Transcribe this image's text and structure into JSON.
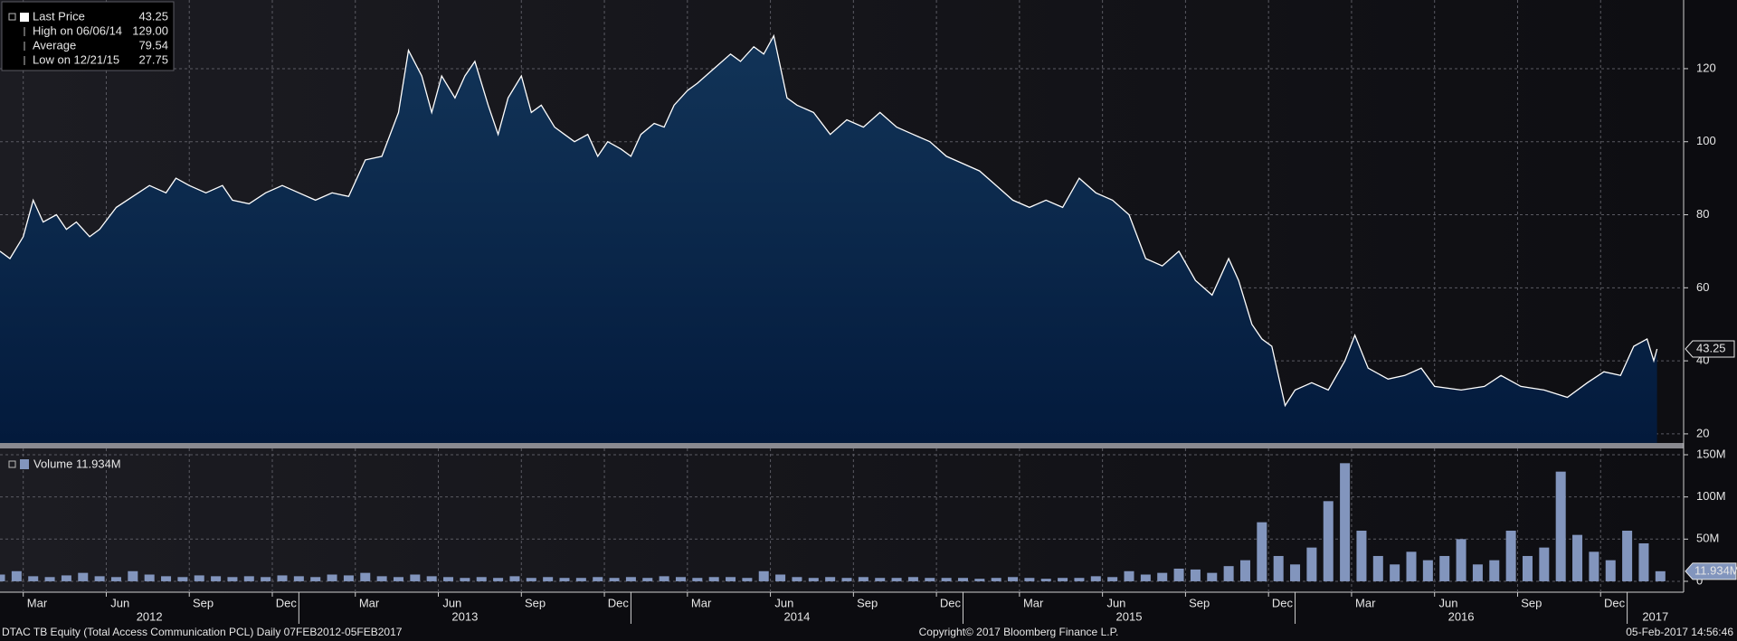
{
  "chart_data": [
    {
      "type": "area",
      "x": [
        2012.1,
        2012.13,
        2012.17,
        2012.2,
        2012.23,
        2012.27,
        2012.3,
        2012.33,
        2012.37,
        2012.4,
        2012.45,
        2012.5,
        2012.55,
        2012.6,
        2012.63,
        2012.67,
        2012.72,
        2012.77,
        2012.8,
        2012.85,
        2012.9,
        2012.95,
        2013.0,
        2013.05,
        2013.1,
        2013.15,
        2013.2,
        2013.25,
        2013.3,
        2013.33,
        2013.37,
        2013.4,
        2013.43,
        2013.47,
        2013.5,
        2013.53,
        2013.57,
        2013.6,
        2013.63,
        2013.67,
        2013.7,
        2013.73,
        2013.77,
        2013.8,
        2013.83,
        2013.87,
        2013.9,
        2013.93,
        2013.97,
        2014.0,
        2014.03,
        2014.07,
        2014.1,
        2014.13,
        2014.17,
        2014.2,
        2014.25,
        2014.3,
        2014.33,
        2014.37,
        2014.4,
        2014.43,
        2014.47,
        2014.5,
        2014.55,
        2014.6,
        2014.65,
        2014.7,
        2014.75,
        2014.8,
        2014.85,
        2014.9,
        2014.95,
        2015.0,
        2015.05,
        2015.1,
        2015.15,
        2015.2,
        2015.25,
        2015.3,
        2015.35,
        2015.4,
        2015.45,
        2015.5,
        2015.55,
        2015.6,
        2015.65,
        2015.7,
        2015.75,
        2015.8,
        2015.83,
        2015.87,
        2015.9,
        2015.93,
        2015.97,
        2016.0,
        2016.05,
        2016.1,
        2016.15,
        2016.18,
        2016.22,
        2016.28,
        2016.33,
        2016.38,
        2016.42,
        2016.5,
        2016.57,
        2016.62,
        2016.68,
        2016.75,
        2016.82,
        2016.88,
        2016.93,
        2016.98,
        2017.02,
        2017.06,
        2017.08,
        2017.09
      ],
      "series": [
        {
          "name": "Last Price",
          "color": "#ffffff",
          "fill": "#0b2a50",
          "values": [
            70,
            68,
            74,
            84,
            78,
            80,
            76,
            78,
            74,
            76,
            82,
            85,
            88,
            86,
            90,
            88,
            86,
            88,
            84,
            83,
            86,
            88,
            86,
            84,
            86,
            85,
            95,
            96,
            108,
            125,
            118,
            108,
            118,
            112,
            118,
            122,
            110,
            102,
            112,
            118,
            108,
            110,
            104,
            102,
            100,
            102,
            96,
            100,
            98,
            96,
            102,
            105,
            104,
            110,
            114,
            116,
            120,
            124,
            122,
            126,
            124,
            129,
            112,
            110,
            108,
            102,
            106,
            104,
            108,
            104,
            102,
            100,
            96,
            94,
            92,
            88,
            84,
            82,
            84,
            82,
            90,
            86,
            84,
            80,
            68,
            66,
            70,
            62,
            58,
            68,
            62,
            50,
            46,
            44,
            27.75,
            32,
            34,
            32,
            40,
            47,
            38,
            35,
            36,
            38,
            33,
            32,
            33,
            36,
            33,
            32,
            30,
            34,
            37,
            36,
            44,
            46,
            40,
            43.25
          ]
        }
      ],
      "stats": [
        {
          "name": "Last Price",
          "value": 43.25,
          "label": "43.25"
        },
        {
          "name": "High on 06/06/14",
          "value": 129,
          "label": "129.00"
        },
        {
          "name": "Average",
          "value": 79.54,
          "label": "79.54"
        },
        {
          "name": "Low on 12/21/15",
          "value": 27.75,
          "label": "27.75"
        }
      ],
      "xlim": [
        2012.1,
        2017.17
      ],
      "ylim": [
        17.5,
        138.8
      ],
      "yticks": [
        20,
        40,
        60,
        80,
        100,
        120
      ],
      "grid": true
    },
    {
      "type": "bar",
      "x": [
        2012.1,
        2012.15,
        2012.2,
        2012.25,
        2012.3,
        2012.35,
        2012.4,
        2012.45,
        2012.5,
        2012.55,
        2012.6,
        2012.65,
        2012.7,
        2012.75,
        2012.8,
        2012.85,
        2012.9,
        2012.95,
        2013.0,
        2013.05,
        2013.1,
        2013.15,
        2013.2,
        2013.25,
        2013.3,
        2013.35,
        2013.4,
        2013.45,
        2013.5,
        2013.55,
        2013.6,
        2013.65,
        2013.7,
        2013.75,
        2013.8,
        2013.85,
        2013.9,
        2013.95,
        2014.0,
        2014.05,
        2014.1,
        2014.15,
        2014.2,
        2014.25,
        2014.3,
        2014.35,
        2014.4,
        2014.45,
        2014.5,
        2014.55,
        2014.6,
        2014.65,
        2014.7,
        2014.75,
        2014.8,
        2014.85,
        2014.9,
        2014.95,
        2015.0,
        2015.05,
        2015.1,
        2015.15,
        2015.2,
        2015.25,
        2015.3,
        2015.35,
        2015.4,
        2015.45,
        2015.5,
        2015.55,
        2015.6,
        2015.65,
        2015.7,
        2015.75,
        2015.8,
        2015.85,
        2015.9,
        2015.95,
        2016.0,
        2016.05,
        2016.1,
        2016.15,
        2016.2,
        2016.25,
        2016.3,
        2016.35,
        2016.4,
        2016.45,
        2016.5,
        2016.55,
        2016.6,
        2016.65,
        2016.7,
        2016.75,
        2016.8,
        2016.85,
        2016.9,
        2016.95,
        2017.0,
        2017.05,
        2017.1
      ],
      "series": [
        {
          "name": "Volume",
          "color": "#8295bd",
          "values": [
            8,
            12,
            6,
            5,
            7,
            10,
            6,
            5,
            12,
            8,
            6,
            5,
            7,
            6,
            5,
            6,
            5,
            7,
            6,
            5,
            8,
            7,
            10,
            6,
            5,
            8,
            6,
            5,
            4,
            5,
            4,
            6,
            4,
            5,
            4,
            4,
            5,
            4,
            5,
            4,
            6,
            5,
            4,
            5,
            5,
            4,
            12,
            8,
            5,
            4,
            5,
            4,
            5,
            4,
            4,
            5,
            4,
            4,
            4,
            3,
            4,
            5,
            4,
            3,
            4,
            4,
            6,
            5,
            12,
            8,
            10,
            15,
            14,
            10,
            18,
            25,
            70,
            30,
            20,
            40,
            95,
            140,
            60,
            30,
            20,
            35,
            25,
            30,
            50,
            20,
            25,
            60,
            30,
            40,
            130,
            55,
            35,
            25,
            60,
            45,
            11.934
          ]
        }
      ],
      "stats": [
        {
          "name": "Volume",
          "value": 11.934,
          "label": "11.934M"
        }
      ],
      "xlim": [
        2012.1,
        2017.17
      ],
      "ylim": [
        -12.9,
        157.5
      ],
      "yticks": [
        0,
        {
          "value": 50,
          "label": "50M"
        },
        {
          "value": 100,
          "label": "100M"
        },
        {
          "value": 150,
          "label": "150M"
        }
      ],
      "xticks": [
        {
          "value": 2012.17,
          "label": "Mar"
        },
        {
          "value": 2012.42,
          "label": "Jun"
        },
        {
          "value": 2012.67,
          "label": "Sep"
        },
        {
          "value": 2012.92,
          "label": "Dec"
        },
        {
          "value": 2013.17,
          "label": "Mar"
        },
        {
          "value": 2013.42,
          "label": "Jun"
        },
        {
          "value": 2013.67,
          "label": "Sep"
        },
        {
          "value": 2013.92,
          "label": "Dec"
        },
        {
          "value": 2014.17,
          "label": "Mar"
        },
        {
          "value": 2014.42,
          "label": "Jun"
        },
        {
          "value": 2014.67,
          "label": "Sep"
        },
        {
          "value": 2014.92,
          "label": "Dec"
        },
        {
          "value": 2015.17,
          "label": "Mar"
        },
        {
          "value": 2015.42,
          "label": "Jun"
        },
        {
          "value": 2015.67,
          "label": "Sep"
        },
        {
          "value": 2015.92,
          "label": "Dec"
        },
        {
          "value": 2016.17,
          "label": "Mar"
        },
        {
          "value": 2016.42,
          "label": "Jun"
        },
        {
          "value": 2016.67,
          "label": "Sep"
        },
        {
          "value": 2016.92,
          "label": "Dec"
        }
      ],
      "year_ticks": [
        2012,
        2013,
        2014,
        2015,
        2016,
        2017
      ],
      "grid": true
    }
  ],
  "footer": {
    "left": "DTAC TB Equity (Total Access Communication PCL)  Daily 07FEB2012-05FEB2017",
    "center": "Copyright© 2017 Bloomberg Finance L.P.",
    "right": "05-Feb-2017 14:56:46"
  }
}
